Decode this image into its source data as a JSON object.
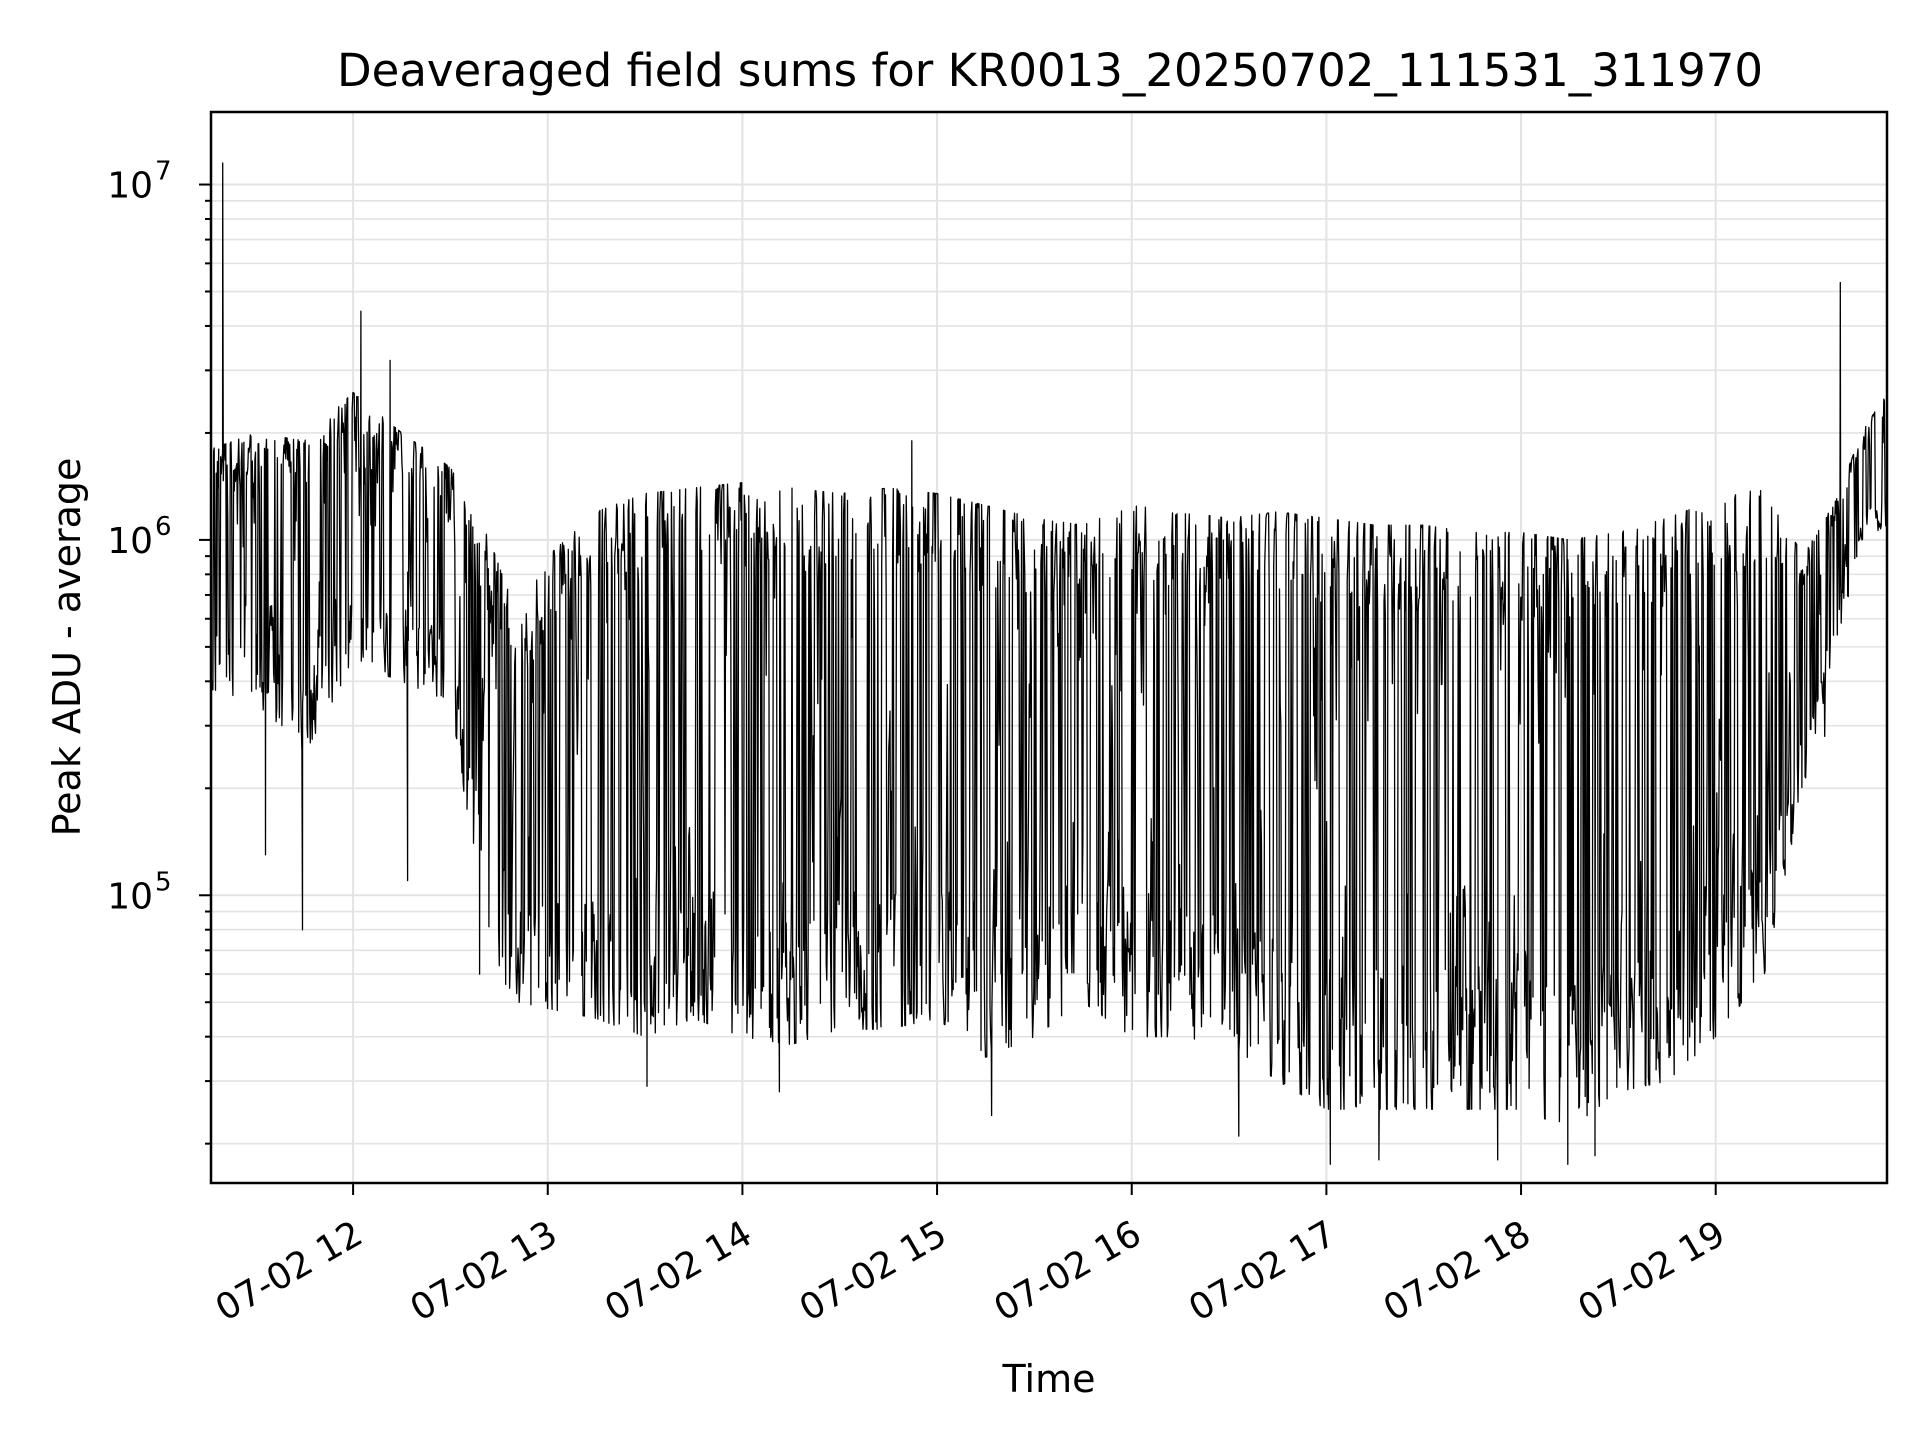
{
  "chart_data": {
    "type": "line",
    "title": "Deaveraged field sums for KR0013_20250702_111531_311970",
    "xlabel": "Time",
    "ylabel": "Peak ADU - average",
    "y_scale": "log",
    "x_unit": "hours",
    "xlim": [
      11.27,
      19.88
    ],
    "ylim": [
      15500,
      16000000
    ],
    "grid": true,
    "legend": "none",
    "line_color": "#000000",
    "x_ticks": [
      12,
      13,
      14,
      15,
      16,
      17,
      18,
      19
    ],
    "x_tick_labels": [
      "07-02 12",
      "07-02 13",
      "07-02 14",
      "07-02 15",
      "07-02 16",
      "07-02 17",
      "07-02 18",
      "07-02 19"
    ],
    "y_ticks": [
      {
        "value": 100000,
        "base": "10",
        "exp": "5"
      },
      {
        "value": 1000000,
        "base": "10",
        "exp": "6"
      },
      {
        "value": 10000000,
        "base": "10",
        "exp": "7"
      }
    ],
    "series": [
      {
        "envelope": {
          "x": [
            11.27,
            11.5,
            11.75,
            12.0,
            12.25,
            12.5,
            12.7,
            12.85,
            13.0,
            13.25,
            13.5,
            13.75,
            14.0,
            14.25,
            14.5,
            14.75,
            15.0,
            15.25,
            15.5,
            15.75,
            16.0,
            16.25,
            16.5,
            16.75,
            17.0,
            17.25,
            17.5,
            17.75,
            18.0,
            18.25,
            18.5,
            18.75,
            19.0,
            19.25,
            19.45,
            19.62,
            19.75,
            19.88
          ],
          "low": [
            380000,
            350000,
            250000,
            450000,
            400000,
            350000,
            65000,
            50000,
            48000,
            45000,
            40000,
            45000,
            40000,
            38000,
            42000,
            42000,
            45000,
            35000,
            40000,
            50000,
            40000,
            40000,
            38000,
            30000,
            25000,
            25000,
            25000,
            25000,
            25000,
            22000,
            28000,
            30000,
            40000,
            60000,
            200000,
            500000,
            1000000,
            1100000
          ],
          "high": [
            1800000,
            2000000,
            1900000,
            2600000,
            2000000,
            1600000,
            1000000,
            600000,
            900000,
            1200000,
            1350000,
            1400000,
            1450000,
            1400000,
            1350000,
            1400000,
            1350000,
            1250000,
            1150000,
            1100000,
            1250000,
            1200000,
            1150000,
            1200000,
            1150000,
            1100000,
            1100000,
            1050000,
            1050000,
            1000000,
            1050000,
            1150000,
            1300000,
            1400000,
            900000,
            1300000,
            2000000,
            2600000
          ]
        },
        "spikes": [
          {
            "x": 11.33,
            "y": 11500000
          },
          {
            "x": 12.04,
            "y": 4400000
          },
          {
            "x": 12.19,
            "y": 3200000
          },
          {
            "x": 14.87,
            "y": 1900000
          },
          {
            "x": 19.64,
            "y": 5300000
          },
          {
            "x": 11.74,
            "y": 80000
          },
          {
            "x": 11.55,
            "y": 130000
          },
          {
            "x": 12.28,
            "y": 110000
          },
          {
            "x": 13.51,
            "y": 29000
          },
          {
            "x": 14.19,
            "y": 28000
          },
          {
            "x": 15.28,
            "y": 24000
          },
          {
            "x": 16.55,
            "y": 21000
          },
          {
            "x": 17.02,
            "y": 17500
          },
          {
            "x": 17.27,
            "y": 18000
          },
          {
            "x": 17.88,
            "y": 18000
          },
          {
            "x": 18.24,
            "y": 17500
          },
          {
            "x": 18.38,
            "y": 18500
          },
          {
            "x": 12.65,
            "y": 60000
          },
          {
            "x": 19.56,
            "y": 280000
          }
        ]
      }
    ]
  }
}
